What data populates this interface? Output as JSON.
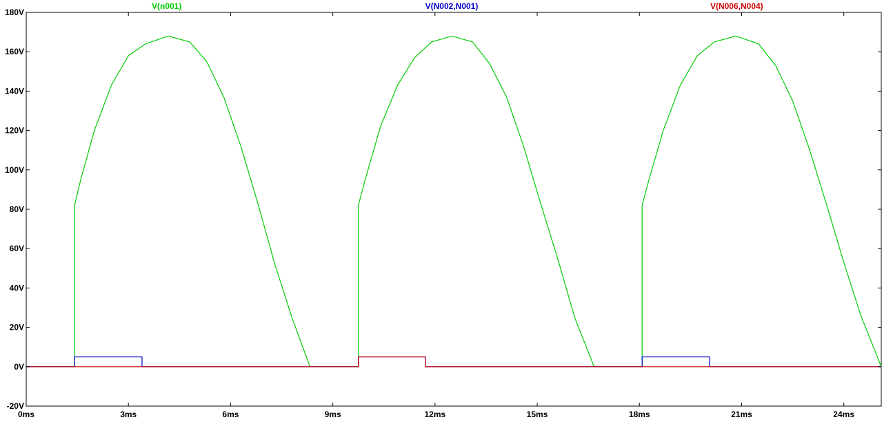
{
  "chart_data": {
    "type": "line",
    "title": "",
    "xlabel": "",
    "ylabel": "",
    "x_unit": "ms",
    "y_unit": "V",
    "xlim": [
      0,
      25.1
    ],
    "ylim": [
      -20,
      180
    ],
    "x_ticks": [
      0,
      3,
      6,
      9,
      12,
      15,
      18,
      21,
      24
    ],
    "x_tick_labels": [
      "0ms",
      "3ms",
      "6ms",
      "9ms",
      "12ms",
      "15ms",
      "18ms",
      "21ms",
      "24ms"
    ],
    "y_ticks": [
      -20,
      0,
      20,
      40,
      60,
      80,
      100,
      120,
      140,
      160,
      180
    ],
    "y_tick_labels": [
      "-20V",
      "0V",
      "20V",
      "40V",
      "60V",
      "80V",
      "100V",
      "120V",
      "140V",
      "160V",
      "180V"
    ],
    "grid": false,
    "legend_position": "top",
    "series": [
      {
        "name": "V(n001)",
        "color": "#00cc00",
        "x": [
          0,
          1.42,
          1.42,
          1.6,
          2.0,
          2.5,
          3.0,
          3.5,
          4.17,
          4.8,
          5.3,
          5.8,
          6.3,
          6.8,
          7.3,
          7.8,
          8.33,
          9.75,
          9.75,
          9.95,
          10.4,
          10.9,
          11.4,
          11.9,
          12.5,
          13.1,
          13.6,
          14.1,
          14.6,
          15.1,
          15.6,
          16.1,
          16.67,
          18.08,
          18.08,
          18.28,
          18.7,
          19.2,
          19.7,
          20.2,
          20.83,
          21.5,
          22.0,
          22.5,
          23.0,
          23.5,
          24.0,
          24.5,
          25.1
        ],
        "y": [
          0,
          0,
          82,
          95,
          120,
          143,
          158,
          164,
          168,
          165,
          155,
          137,
          112,
          83,
          52,
          25,
          0,
          0,
          82,
          95,
          122,
          143,
          157,
          165,
          168,
          165,
          154,
          137,
          112,
          83,
          55,
          25,
          0,
          0,
          82,
          95,
          120,
          143,
          158,
          165,
          168,
          164,
          153,
          135,
          110,
          82,
          53,
          26,
          0
        ]
      },
      {
        "name": "V(N002,N001)",
        "color": "#0000cc",
        "x": [
          0,
          1.42,
          1.42,
          3.4,
          3.4,
          9.75,
          9.75,
          11.72,
          11.72,
          18.08,
          18.08,
          20.06,
          20.06,
          25.1
        ],
        "y": [
          0,
          0,
          5,
          5,
          0,
          0,
          5,
          5,
          0,
          0,
          5,
          5,
          0,
          0
        ]
      },
      {
        "name": "V(N006,N004)",
        "color": "#cc0000",
        "x": [
          0,
          9.75,
          9.75,
          11.72,
          11.72,
          25.1
        ],
        "y": [
          0,
          0,
          5,
          5,
          0,
          0
        ]
      }
    ]
  }
}
